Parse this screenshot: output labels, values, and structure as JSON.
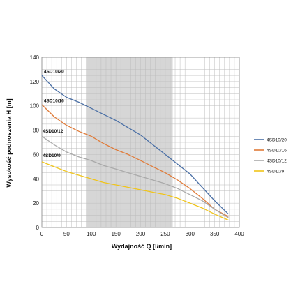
{
  "chart_data": {
    "type": "line",
    "title": "",
    "xlabel": "Wydajność Q [l/min]",
    "ylabel": "Wysokość podnoszenia H [m]",
    "xlim": [
      0,
      400
    ],
    "ylim": [
      0,
      140
    ],
    "x_ticks": [
      0,
      50,
      100,
      150,
      200,
      250,
      300,
      350,
      400
    ],
    "y_ticks": [
      0,
      20,
      40,
      60,
      80,
      100,
      120,
      140
    ],
    "grid": true,
    "shaded_range": [
      90,
      265
    ],
    "legend_position": "right",
    "series": [
      {
        "name": "4SD10/20",
        "color": "#4a6fa5",
        "points": [
          [
            0,
            125
          ],
          [
            25,
            114
          ],
          [
            50,
            107
          ],
          [
            75,
            103
          ],
          [
            100,
            98
          ],
          [
            125,
            93
          ],
          [
            150,
            88
          ],
          [
            175,
            82
          ],
          [
            200,
            76
          ],
          [
            225,
            68
          ],
          [
            250,
            60
          ],
          [
            275,
            52
          ],
          [
            300,
            44
          ],
          [
            325,
            33
          ],
          [
            350,
            22
          ],
          [
            378,
            11
          ]
        ]
      },
      {
        "name": "4SD10/16",
        "color": "#e07b39",
        "points": [
          [
            0,
            101
          ],
          [
            25,
            91
          ],
          [
            50,
            84
          ],
          [
            75,
            79
          ],
          [
            100,
            75
          ],
          [
            125,
            69
          ],
          [
            150,
            64
          ],
          [
            175,
            60
          ],
          [
            200,
            55
          ],
          [
            225,
            50
          ],
          [
            250,
            45
          ],
          [
            275,
            39
          ],
          [
            300,
            32
          ],
          [
            325,
            24
          ],
          [
            350,
            15
          ],
          [
            378,
            9
          ]
        ]
      },
      {
        "name": "4SD10/12",
        "color": "#a9a9a9",
        "points": [
          [
            0,
            75
          ],
          [
            25,
            68
          ],
          [
            50,
            62
          ],
          [
            75,
            58
          ],
          [
            100,
            55
          ],
          [
            125,
            51
          ],
          [
            150,
            48
          ],
          [
            175,
            45
          ],
          [
            200,
            42
          ],
          [
            225,
            39
          ],
          [
            250,
            36
          ],
          [
            275,
            32
          ],
          [
            300,
            27
          ],
          [
            325,
            22
          ],
          [
            350,
            15
          ],
          [
            378,
            8
          ]
        ]
      },
      {
        "name": "4SD10/9",
        "color": "#f0c419",
        "points": [
          [
            0,
            54
          ],
          [
            25,
            50
          ],
          [
            50,
            46
          ],
          [
            75,
            43
          ],
          [
            100,
            40
          ],
          [
            125,
            37
          ],
          [
            150,
            35
          ],
          [
            175,
            33
          ],
          [
            200,
            31
          ],
          [
            225,
            29
          ],
          [
            250,
            27
          ],
          [
            275,
            24
          ],
          [
            300,
            20
          ],
          [
            325,
            16
          ],
          [
            350,
            11
          ],
          [
            378,
            6
          ]
        ]
      }
    ],
    "curve_labels": [
      {
        "text": "4SD10/20",
        "x": 4,
        "y": 127
      },
      {
        "text": "4SD10/16",
        "x": 4,
        "y": 103
      },
      {
        "text": "4SD10/12",
        "x": 2,
        "y": 78
      },
      {
        "text": "4SD10/9",
        "x": 2,
        "y": 58
      }
    ]
  }
}
